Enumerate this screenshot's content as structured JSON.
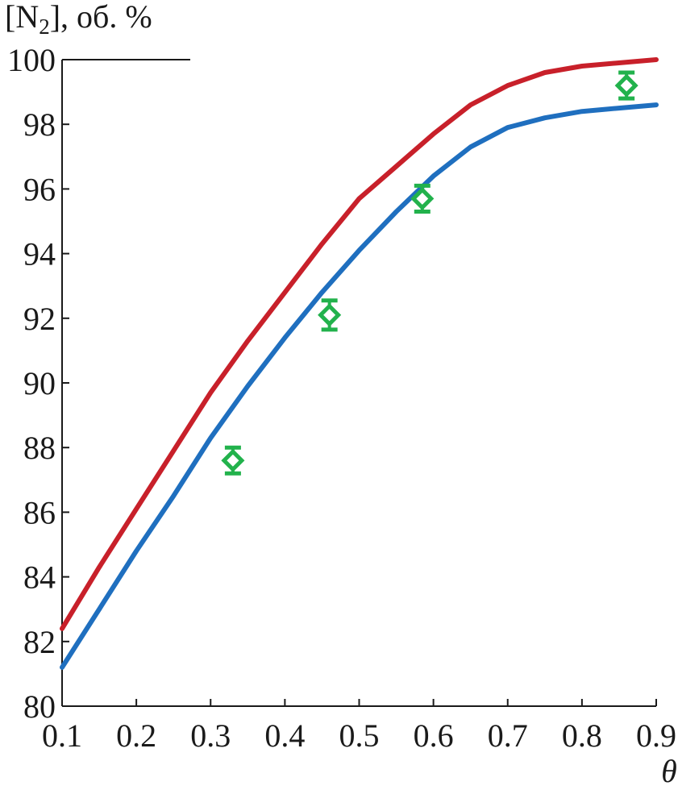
{
  "chart_data": {
    "type": "line",
    "title": "",
    "xlabel": "θ",
    "ylabel": "[N2], об. %",
    "ylabel_parts": {
      "open": "[N",
      "sub": "2",
      "close": "], об. %"
    },
    "xlim": [
      0.1,
      0.9
    ],
    "ylim": [
      80,
      100
    ],
    "x_ticks": [
      0.1,
      0.2,
      0.3,
      0.4,
      0.5,
      0.6,
      0.7,
      0.8,
      0.9
    ],
    "x_tick_labels": [
      "0.1",
      "0.2",
      "0.3",
      "0.4",
      "0.5",
      "0.6",
      "0.7",
      "0.8",
      "0.9"
    ],
    "y_ticks": [
      80,
      82,
      84,
      86,
      88,
      90,
      92,
      94,
      96,
      98,
      100
    ],
    "y_tick_labels": [
      "80",
      "82",
      "84",
      "86",
      "88",
      "90",
      "92",
      "94",
      "96",
      "98",
      "100"
    ],
    "grid": false,
    "series": [
      {
        "kind": "line",
        "color": "#c8202a",
        "x": [
          0.1,
          0.15,
          0.2,
          0.25,
          0.3,
          0.35,
          0.4,
          0.45,
          0.5,
          0.55,
          0.6,
          0.65,
          0.7,
          0.75,
          0.8,
          0.85,
          0.9
        ],
        "y": [
          82.4,
          84.3,
          86.1,
          87.9,
          89.7,
          91.3,
          92.8,
          94.3,
          95.7,
          96.7,
          97.7,
          98.6,
          99.2,
          99.6,
          99.8,
          99.9,
          100.0
        ]
      },
      {
        "kind": "line",
        "color": "#1f6fbf",
        "x": [
          0.1,
          0.15,
          0.2,
          0.25,
          0.3,
          0.35,
          0.4,
          0.45,
          0.5,
          0.55,
          0.6,
          0.65,
          0.7,
          0.75,
          0.8,
          0.85,
          0.9
        ],
        "y": [
          81.2,
          83.0,
          84.8,
          86.5,
          88.3,
          89.9,
          91.4,
          92.8,
          94.1,
          95.3,
          96.4,
          97.3,
          97.9,
          98.2,
          98.4,
          98.5,
          98.6
        ]
      },
      {
        "kind": "points",
        "marker": "diamond",
        "color": "#22b24c",
        "x": [
          0.33,
          0.46,
          0.585,
          0.86
        ],
        "y": [
          87.6,
          92.1,
          95.7,
          99.2
        ],
        "err": [
          0.4,
          0.45,
          0.4,
          0.4
        ]
      }
    ]
  }
}
